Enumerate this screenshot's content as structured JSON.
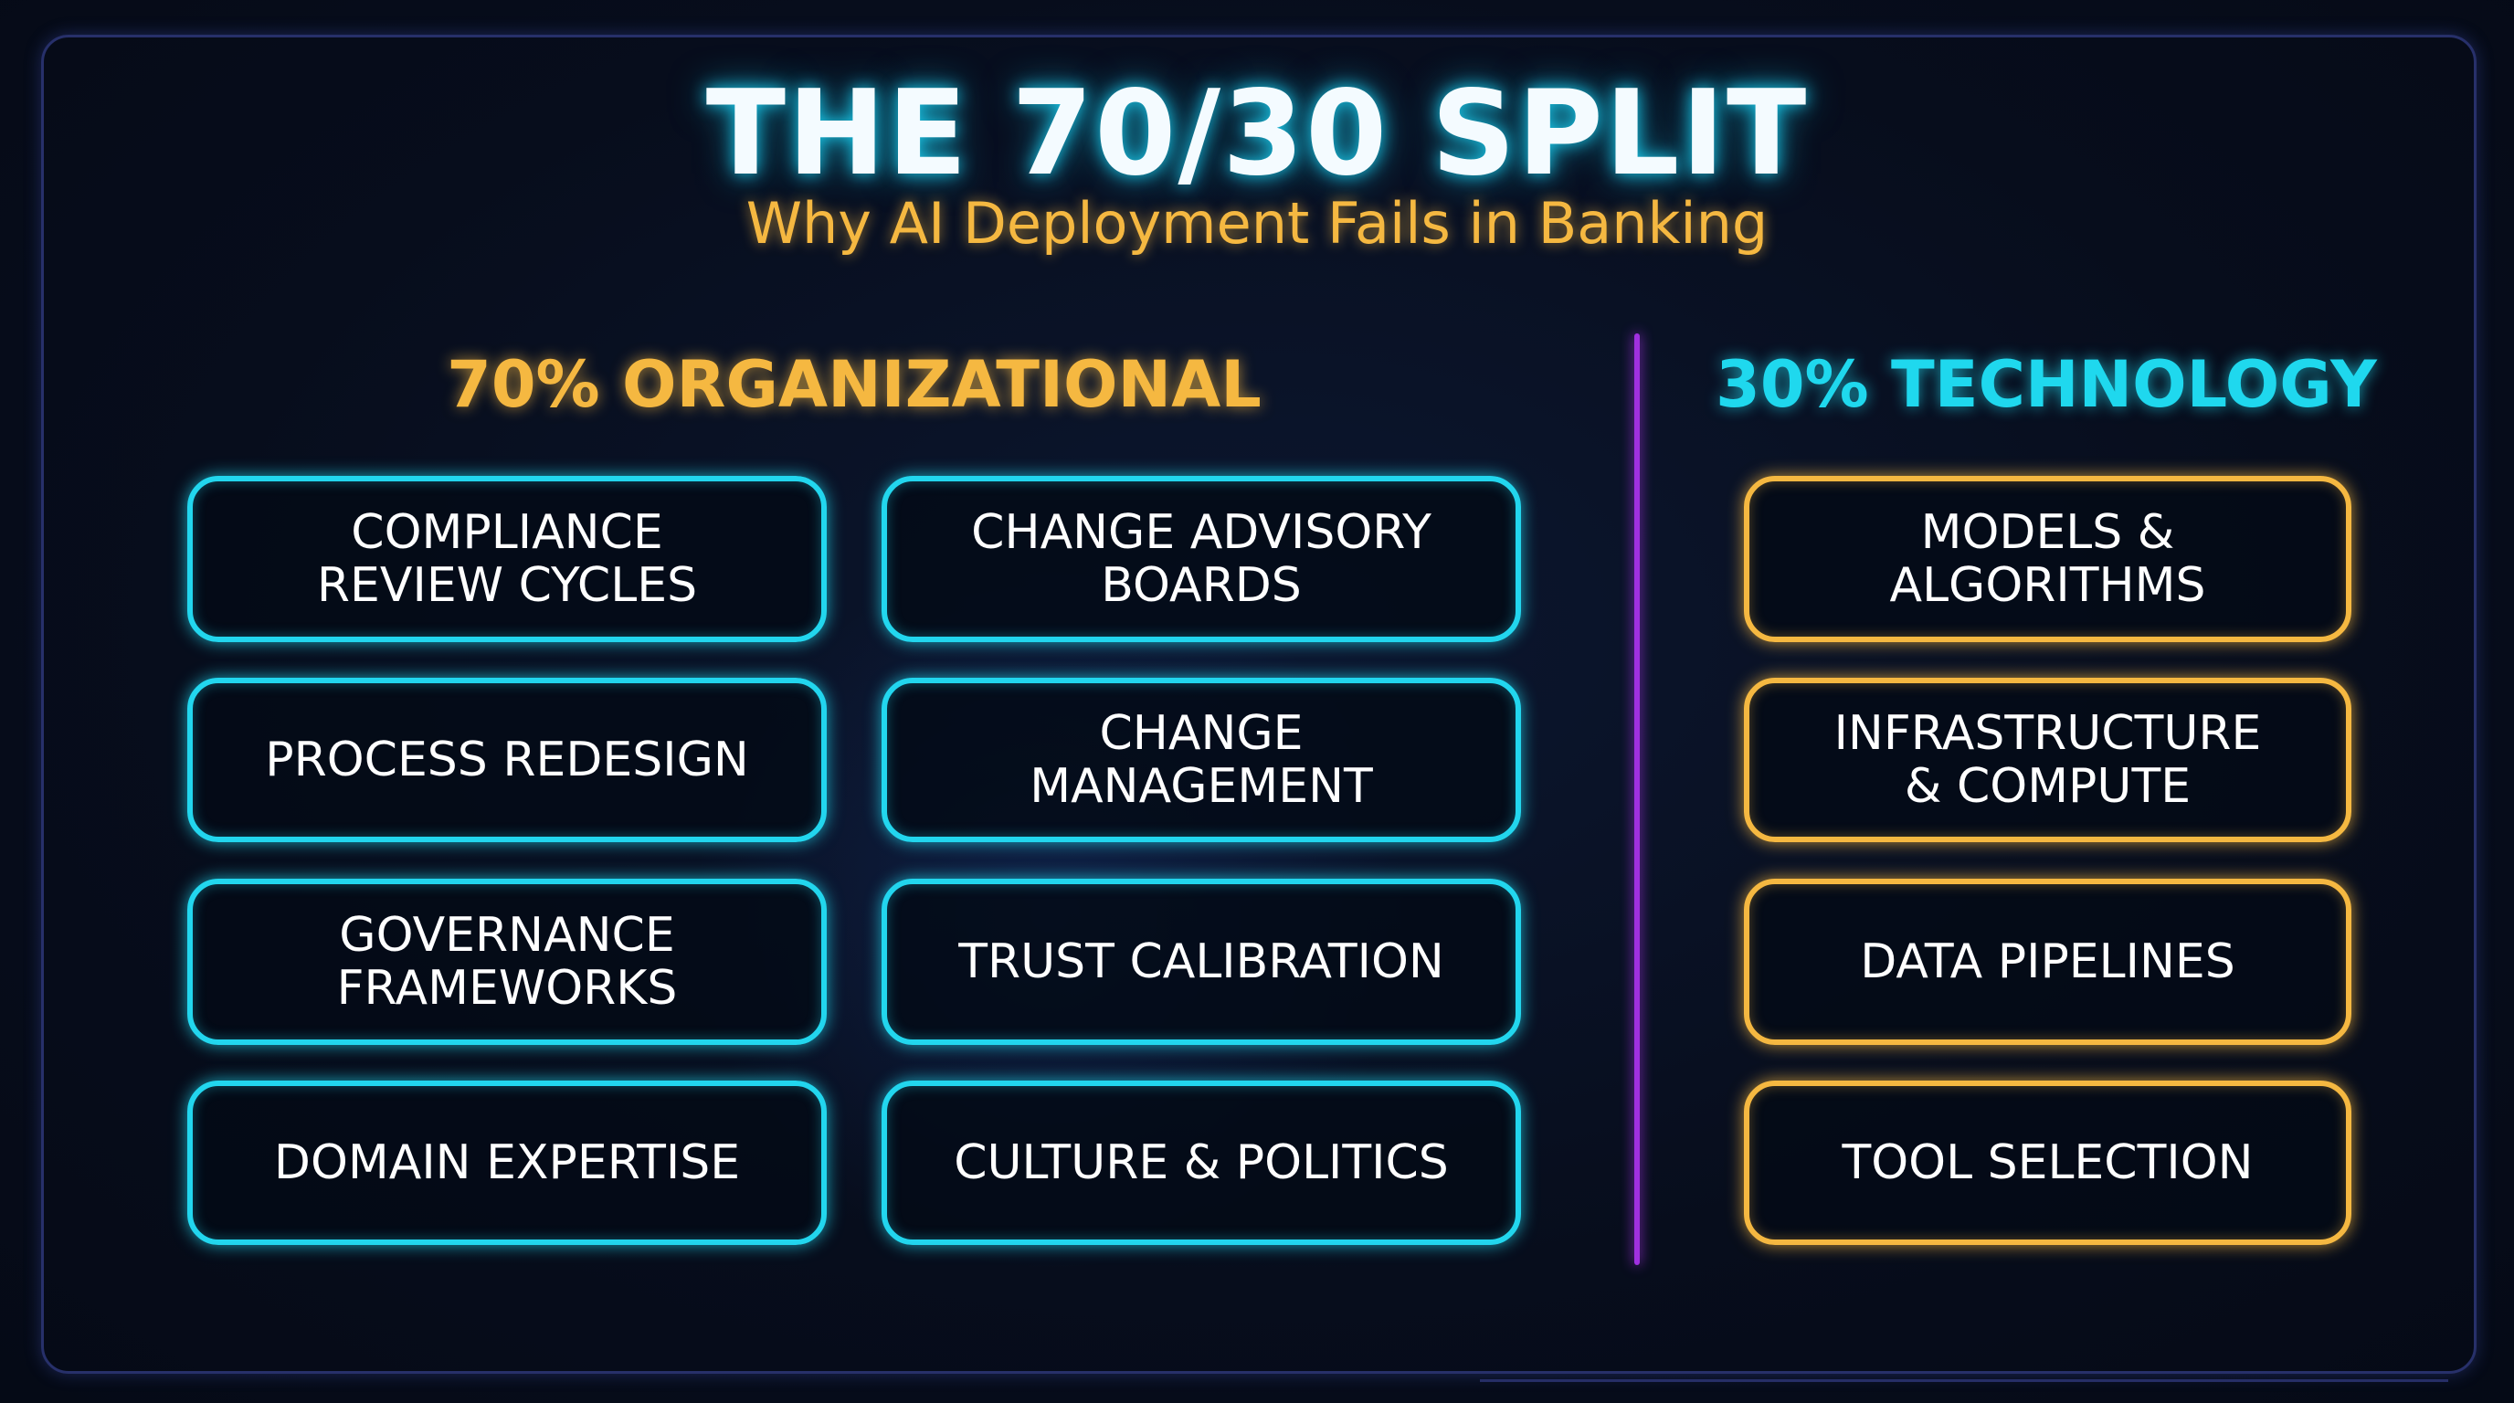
{
  "title": "THE 70/30 SPLIT",
  "subtitle": "Why AI Deployment Fails in Banking",
  "organizational": {
    "heading": "70% ORGANIZATIONAL",
    "items": [
      "COMPLIANCE\nREVIEW CYCLES",
      "CHANGE ADVISORY\nBOARDS",
      "PROCESS REDESIGN",
      "CHANGE\nMANAGEMENT",
      "GOVERNANCE\nFRAMEWORKS",
      "TRUST CALIBRATION",
      "DOMAIN EXPERTISE",
      "CULTURE & POLITICS"
    ]
  },
  "technology": {
    "heading": "30% TECHNOLOGY",
    "items": [
      "MODELS &\nALGORITHMS",
      "INFRASTRUCTURE\n& COMPUTE",
      "DATA PIPELINES",
      "TOOL SELECTION"
    ]
  },
  "colors": {
    "organizational_accent": "#f5b841",
    "technology_accent": "#22d6ee",
    "divider": "#a030e0",
    "background": "#070d1c"
  }
}
